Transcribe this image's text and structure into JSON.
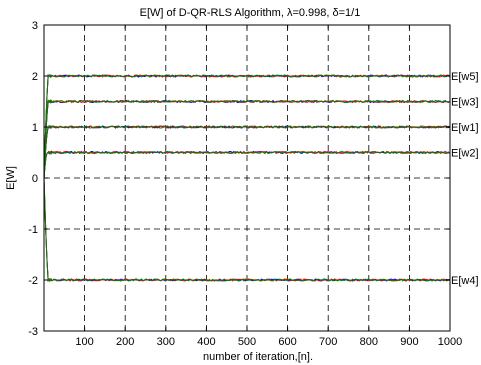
{
  "chart_data": {
    "type": "line",
    "title": "E[W] of D-QR-RLS Algorithm, λ=0.998, δ=1/1",
    "xlabel": "number of iteration,[n].",
    "ylabel": "E[W]",
    "xlim": [
      0,
      1000
    ],
    "ylim": [
      -3,
      3
    ],
    "x_ticks": [
      100,
      200,
      300,
      400,
      500,
      600,
      700,
      800,
      900,
      1000
    ],
    "y_ticks": [
      -3,
      -2,
      -1,
      0,
      1,
      2,
      3
    ],
    "grid": true,
    "line_colors": [
      "#0000ff",
      "#ff0000",
      "#008000"
    ],
    "series": [
      {
        "name": "E[w5]",
        "start": 0,
        "converge_at": 10,
        "final": 2.0
      },
      {
        "name": "E[w3]",
        "start": 0,
        "converge_at": 10,
        "final": 1.5
      },
      {
        "name": "E[w1]",
        "start": 0,
        "converge_at": 10,
        "final": 1.0
      },
      {
        "name": "E[w2]",
        "start": 0,
        "converge_at": 10,
        "final": 0.5
      },
      {
        "name": "E[w4]",
        "start": 0,
        "converge_at": 10,
        "final": -2.0
      }
    ]
  }
}
